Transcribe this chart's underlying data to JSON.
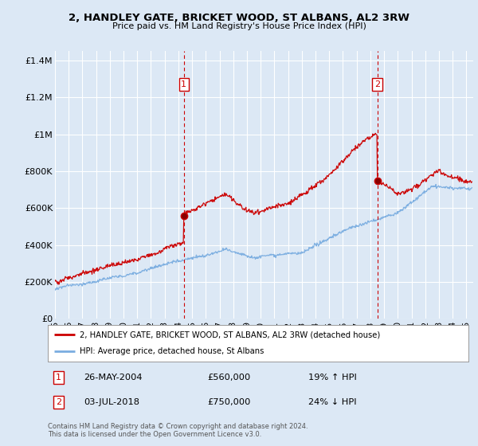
{
  "title": "2, HANDLEY GATE, BRICKET WOOD, ST ALBANS, AL2 3RW",
  "subtitle": "Price paid vs. HM Land Registry's House Price Index (HPI)",
  "bg_color": "#dce8f5",
  "plot_bg_color": "#dce8f5",
  "grid_color": "#ffffff",
  "ylabel_ticks": [
    "£0",
    "£200K",
    "£400K",
    "£600K",
    "£800K",
    "£1M",
    "£1.2M",
    "£1.4M"
  ],
  "ytick_values": [
    0,
    200000,
    400000,
    600000,
    800000,
    1000000,
    1200000,
    1400000
  ],
  "ylim": [
    0,
    1450000
  ],
  "xlim_start": 1995.0,
  "xlim_end": 2025.5,
  "sale1_date": 2004.4,
  "sale1_price": 560000,
  "sale2_date": 2018.5,
  "sale2_price": 750000,
  "legend_line1": "2, HANDLEY GATE, BRICKET WOOD, ST ALBANS, AL2 3RW (detached house)",
  "legend_line2": "HPI: Average price, detached house, St Albans",
  "annotation1_label": "1",
  "annotation1_date": "26-MAY-2004",
  "annotation1_price": "£560,000",
  "annotation1_hpi": "19% ↑ HPI",
  "annotation2_label": "2",
  "annotation2_date": "03-JUL-2018",
  "annotation2_price": "£750,000",
  "annotation2_hpi": "24% ↓ HPI",
  "footer": "Contains HM Land Registry data © Crown copyright and database right 2024.\nThis data is licensed under the Open Government Licence v3.0.",
  "red_line_color": "#cc0000",
  "blue_line_color": "#7aade0",
  "dashed_line_color": "#cc0000"
}
